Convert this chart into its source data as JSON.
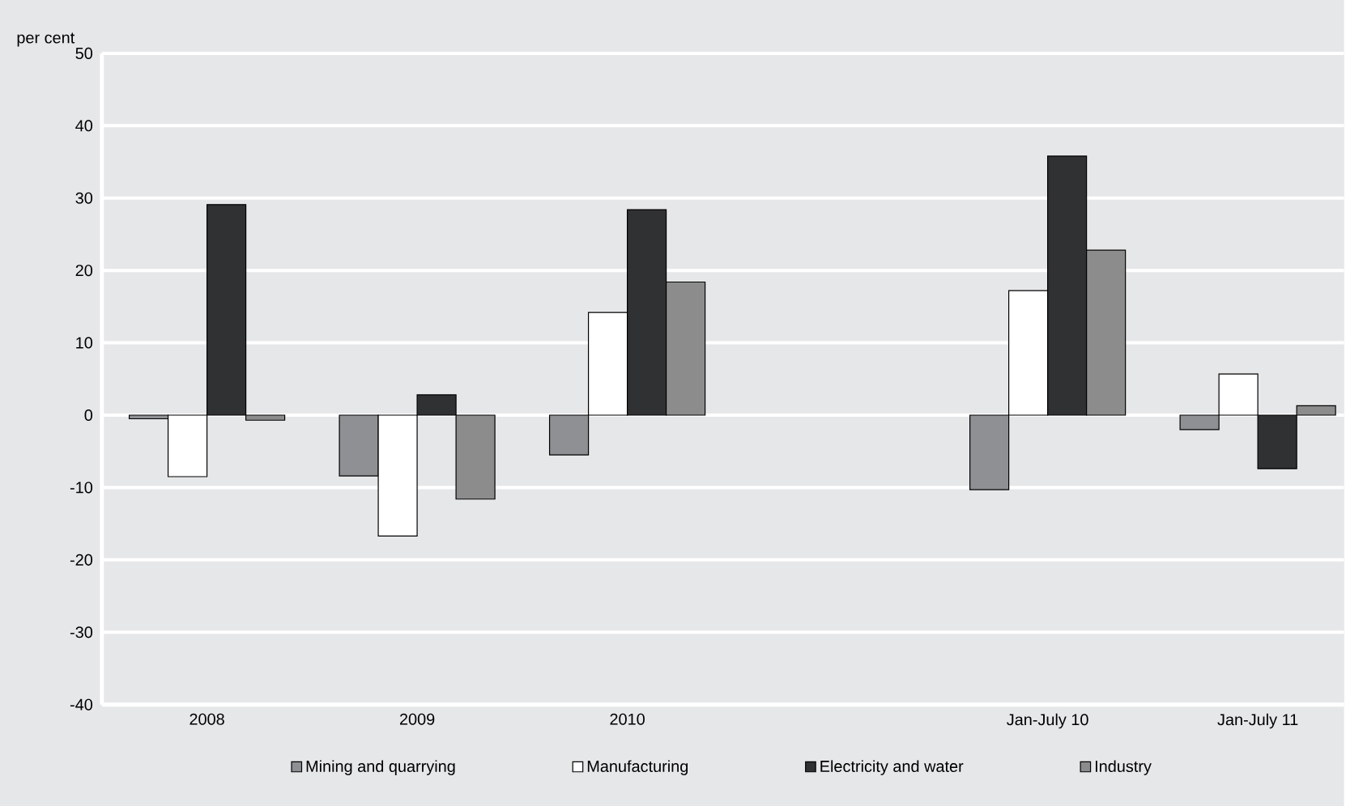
{
  "chart_data": {
    "type": "bar",
    "ylabel": "per cent",
    "categories": [
      "2008",
      "2009",
      "2010",
      null,
      "Jan-July 10",
      "Jan-July 11"
    ],
    "series": [
      {
        "name": "Mining and quarrying",
        "color": "#8e9094",
        "values": [
          -0.5,
          -8.4,
          -5.5,
          null,
          -10.3,
          -2.0
        ]
      },
      {
        "name": "Manufacturing",
        "color": "#ffffff",
        "values": [
          -8.5,
          -16.7,
          14.2,
          null,
          17.2,
          5.7
        ]
      },
      {
        "name": "Electricity and water",
        "color": "#303133",
        "values": [
          29.1,
          2.8,
          28.4,
          null,
          35.8,
          -7.4
        ]
      },
      {
        "name": "Industry",
        "color": "#8c8c8c",
        "values": [
          -0.7,
          -11.6,
          18.4,
          null,
          22.8,
          1.3
        ]
      }
    ],
    "ylim": [
      -40,
      50
    ],
    "yticks": [
      -40,
      -30,
      -20,
      -10,
      0,
      10,
      20,
      30,
      40,
      50
    ],
    "grid": "y",
    "legend": "bottom"
  }
}
